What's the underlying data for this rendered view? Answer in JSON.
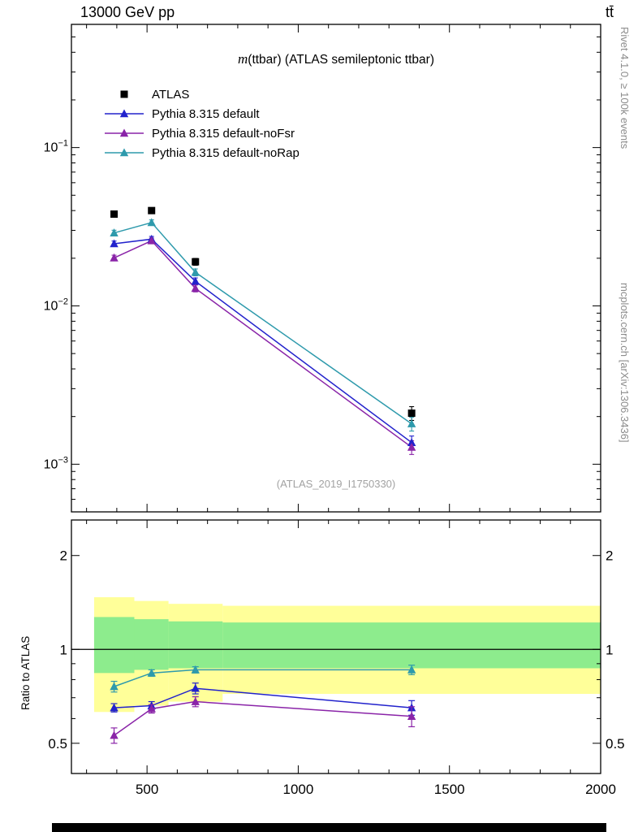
{
  "header": {
    "left": "13000 GeV pp",
    "right": "tt̄"
  },
  "panel": {
    "title_observable": "m",
    "title_rest": "(ttbar) (ATLAS semileptonic ttbar)",
    "watermark": "(ATLAS_2019_I1750330)"
  },
  "side_labels": {
    "rivet": "Rivet 4.1.0, ≥ 100k events",
    "mcplots": "mcplots.cern.ch [arXiv:1306.3436]",
    "ratio_ylabel": "Ratio to ATLAS"
  },
  "chart_data": {
    "type": "line",
    "title": "m(ttbar) (ATLAS semileptonic ttbar)",
    "xlabel": "",
    "ylabel": "",
    "grid": false,
    "legend_position": "top-left",
    "x_axis": {
      "lim": [
        250,
        2000
      ],
      "major_ticks": [
        500,
        1000,
        1500,
        2000
      ],
      "tick_labels": [
        "500",
        "1000",
        "1500",
        "2000"
      ],
      "minor_step": 100
    },
    "y_axis_main": {
      "scale": "log",
      "lim": [
        0.0005,
        0.6
      ],
      "major_ticks": [
        0.1,
        0.01,
        0.001
      ],
      "tick_exponents": [
        -1,
        -2,
        -3
      ]
    },
    "y_axis_ratio": {
      "scale": "log",
      "lim": [
        0.4,
        2.6
      ],
      "major_ticks": [
        0.5,
        1,
        2
      ],
      "tick_labels": [
        "0.5",
        "1",
        "2"
      ],
      "minor_ticks": [
        0.4,
        0.6,
        0.7,
        0.8,
        0.9
      ]
    },
    "x": [
      391,
      515,
      660,
      1375
    ],
    "bin_edges": [
      325,
      458,
      571,
      750,
      2000
    ],
    "yerr_frac": [
      0.04,
      0.04,
      0.05,
      0.1
    ],
    "series": [
      {
        "name": "ATLAS",
        "color": "#000000",
        "marker": "square",
        "has_line": false,
        "values": [
          0.038,
          0.04,
          0.019,
          0.0021
        ]
      },
      {
        "name": "Pythia 8.315 default",
        "color": "#2222cc",
        "marker": "triangle",
        "has_line": true,
        "values": [
          0.0247,
          0.0264,
          0.0143,
          0.00137
        ],
        "ratio": [
          0.65,
          0.66,
          0.75,
          0.65
        ],
        "ratio_err": [
          0.02,
          0.02,
          0.03,
          0.035
        ]
      },
      {
        "name": "Pythia 8.315 default-noFsr",
        "color": "#8a24a8",
        "marker": "triangle",
        "has_line": true,
        "values": [
          0.0201,
          0.0258,
          0.0129,
          0.00128
        ],
        "ratio": [
          0.53,
          0.645,
          0.68,
          0.61
        ],
        "ratio_err": [
          0.03,
          0.02,
          0.025,
          0.045
        ]
      },
      {
        "name": "Pythia 8.315 default-noRap",
        "color": "#2e9aac",
        "marker": "triangle",
        "has_line": true,
        "values": [
          0.0289,
          0.0336,
          0.0163,
          0.0018
        ],
        "ratio": [
          0.76,
          0.84,
          0.86,
          0.86
        ],
        "ratio_err": [
          0.03,
          0.02,
          0.02,
          0.03
        ]
      }
    ],
    "ratio_reference": 1,
    "bands": [
      {
        "name": "yellow-uncertainty",
        "color": "#ffff99",
        "lo": [
          0.63,
          0.66,
          0.68,
          0.72
        ],
        "hi": [
          1.47,
          1.43,
          1.4,
          1.38
        ]
      },
      {
        "name": "green-uncertainty",
        "color": "#8dec8d",
        "lo": [
          0.84,
          0.86,
          0.87,
          0.87
        ],
        "hi": [
          1.27,
          1.25,
          1.23,
          1.22
        ]
      }
    ]
  }
}
